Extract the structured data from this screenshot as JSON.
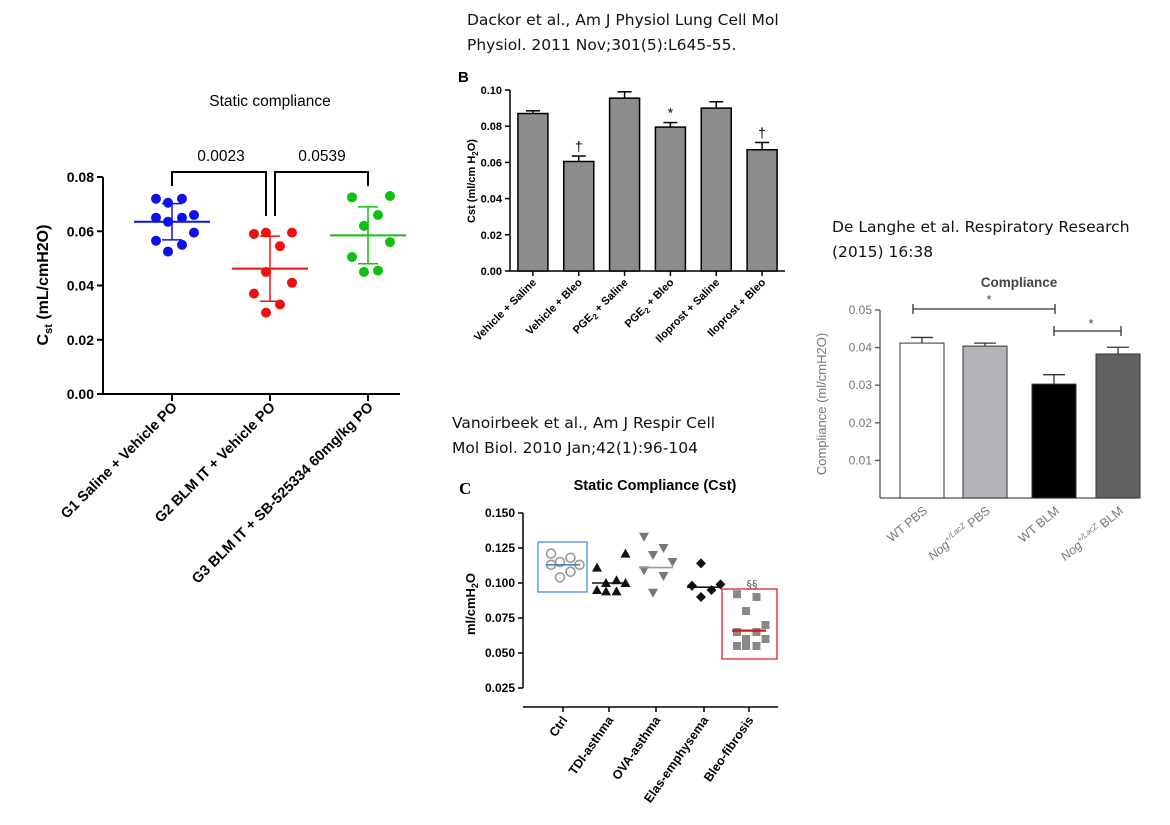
{
  "citations": {
    "dackor": [
      "Dackor et al., Am J Physiol Lung Cell Mol",
      "Physiol. 2011 Nov;301(5):L645-55."
    ],
    "delanghe": [
      "De Langhe et al. Respiratory Research",
      "(2015) 16:38"
    ],
    "vanoirbeek": [
      "Vanoirbeek et al., Am J Respir Cell",
      "Mol Biol. 2010 Jan;42(1):96-104"
    ]
  },
  "chart_data": [
    {
      "id": "static_compliance_main",
      "type": "scatter",
      "title": "Static compliance",
      "xlabel": "",
      "ylabel": "C_st (mL/cmH2O)",
      "ylim": [
        0,
        0.08
      ],
      "yticks": [
        "0.00",
        "0.02",
        "0.04",
        "0.06",
        "0.08"
      ],
      "categories": [
        "G1 Saline + Vehicle PO",
        "G2 BLM IT + Vehicle PO",
        "G3 BLM IT + SB-525334 60mg/kg PO"
      ],
      "series": [
        {
          "color": "#1010e8",
          "mean": 0.0635,
          "sd": 0.0067,
          "points": [
            0.0525,
            0.055,
            0.0565,
            0.0595,
            0.0635,
            0.065,
            0.065,
            0.066,
            0.0705,
            0.072,
            0.072
          ]
        },
        {
          "color": "#ee1010",
          "mean": 0.0462,
          "sd": 0.012,
          "points": [
            0.03,
            0.033,
            0.037,
            0.041,
            0.045,
            0.0545,
            0.059,
            0.0595,
            0.0595
          ]
        },
        {
          "color": "#10c010",
          "mean": 0.0585,
          "sd": 0.0105,
          "points": [
            0.045,
            0.0455,
            0.0505,
            0.056,
            0.062,
            0.066,
            0.0725,
            0.073
          ]
        }
      ],
      "annotations": [
        "0.0023",
        "0.0539"
      ]
    },
    {
      "id": "panel_b",
      "type": "bar",
      "panel_label": "B",
      "ylabel": "Cst (ml/cm H2O)",
      "ylim": [
        0,
        0.1
      ],
      "yticks": [
        "0.00",
        "0.02",
        "0.04",
        "0.06",
        "0.08",
        "0.10"
      ],
      "categories": [
        "Vehicle + Saline",
        "Vehicle + Bleo",
        "PGE2 + Saline",
        "PGE2 + Bleo",
        "Iloprost + Saline",
        "Iloprost + Bleo"
      ],
      "values": [
        0.087,
        0.0605,
        0.0955,
        0.0795,
        0.09,
        0.067
      ],
      "errors": [
        0.0015,
        0.003,
        0.0035,
        0.0025,
        0.0035,
        0.004
      ],
      "markers": [
        "",
        "†",
        "",
        "*",
        "",
        "†"
      ]
    },
    {
      "id": "panel_c",
      "type": "scatter",
      "panel_label": "C",
      "title": "Static Compliance (Cst)",
      "ylabel": "ml/cmH2O",
      "ylim": [
        0.025,
        0.15
      ],
      "yticks": [
        "0.025",
        "0.050",
        "0.075",
        "0.100",
        "0.125",
        "0.150"
      ],
      "categories": [
        "Ctrl",
        "TDI-asthma",
        "OVA-asthma",
        "Elas-emphysema",
        "Bleo-fibrosis"
      ],
      "series": [
        {
          "marker": "circle-open",
          "color": "#9a9a9a",
          "mean": 0.113,
          "points": [
            0.104,
            0.108,
            0.113,
            0.113,
            0.115,
            0.118,
            0.121
          ]
        },
        {
          "marker": "triangle-up",
          "color": "#111111",
          "mean": 0.1,
          "points": [
            0.094,
            0.094,
            0.095,
            0.1,
            0.1,
            0.102,
            0.111,
            0.121
          ]
        },
        {
          "marker": "triangle-down",
          "color": "#777777",
          "mean": 0.111,
          "points": [
            0.093,
            0.105,
            0.109,
            0.115,
            0.12,
            0.125,
            0.133
          ]
        },
        {
          "marker": "diamond",
          "color": "#111111",
          "mean": 0.097,
          "points": [
            0.09,
            0.095,
            0.098,
            0.099,
            0.114
          ]
        },
        {
          "marker": "square",
          "color": "#888888",
          "mean": 0.066,
          "points": [
            0.055,
            0.055,
            0.055,
            0.06,
            0.06,
            0.065,
            0.065,
            0.07,
            0.08,
            0.09,
            0.092
          ]
        }
      ],
      "annotations": [
        "§§"
      ]
    },
    {
      "id": "compliance_delanghe",
      "type": "bar",
      "title": "Compliance",
      "ylabel": "Compliance (ml/cmH2O)",
      "ylim": [
        0,
        0.05
      ],
      "yticks": [
        "0.01",
        "0.02",
        "0.03",
        "0.04",
        "0.05"
      ],
      "categories": [
        "WT PBS",
        "Nog+/LacZ PBS",
        "WT BLM",
        "Nog+/LacZ BLM"
      ],
      "values": [
        0.0412,
        0.0404,
        0.0303,
        0.0383
      ],
      "errors": [
        0.0015,
        0.0008,
        0.0025,
        0.0018
      ],
      "colors": [
        "#ffffff",
        "#b4b4b8",
        "#000000",
        "#616161"
      ],
      "annotations": [
        "*",
        "*"
      ]
    }
  ]
}
